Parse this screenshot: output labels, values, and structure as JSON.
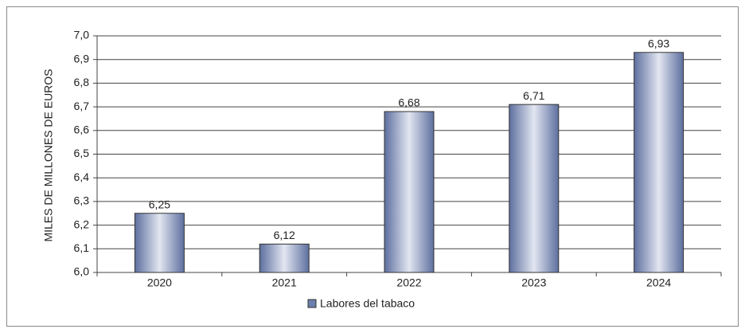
{
  "chart_data": {
    "type": "bar",
    "y_label": "MILES DE MILLONES DE EUROS",
    "categories": [
      "2020",
      "2021",
      "2022",
      "2023",
      "2024"
    ],
    "series": [
      {
        "name": "Labores del tabaco",
        "color": "#6b7fad",
        "values": [
          6.25,
          6.12,
          6.68,
          6.71,
          6.93
        ],
        "value_labels": [
          "6,25",
          "6,12",
          "6,68",
          "6,71",
          "6,93"
        ]
      }
    ],
    "ylim": [
      6.0,
      7.0
    ],
    "yticks": [
      {
        "value": 6.0,
        "label": "6,0"
      },
      {
        "value": 6.1,
        "label": "6,1"
      },
      {
        "value": 6.2,
        "label": "6,2"
      },
      {
        "value": 6.3,
        "label": "6,3"
      },
      {
        "value": 6.4,
        "label": "6,4"
      },
      {
        "value": 6.5,
        "label": "6,5"
      },
      {
        "value": 6.6,
        "label": "6,6"
      },
      {
        "value": 6.7,
        "label": "6,7"
      },
      {
        "value": 6.8,
        "label": "6,8"
      },
      {
        "value": 6.9,
        "label": "6,9"
      },
      {
        "value": 7.0,
        "label": "7,0"
      }
    ],
    "grid": true,
    "legend": "bottom"
  }
}
